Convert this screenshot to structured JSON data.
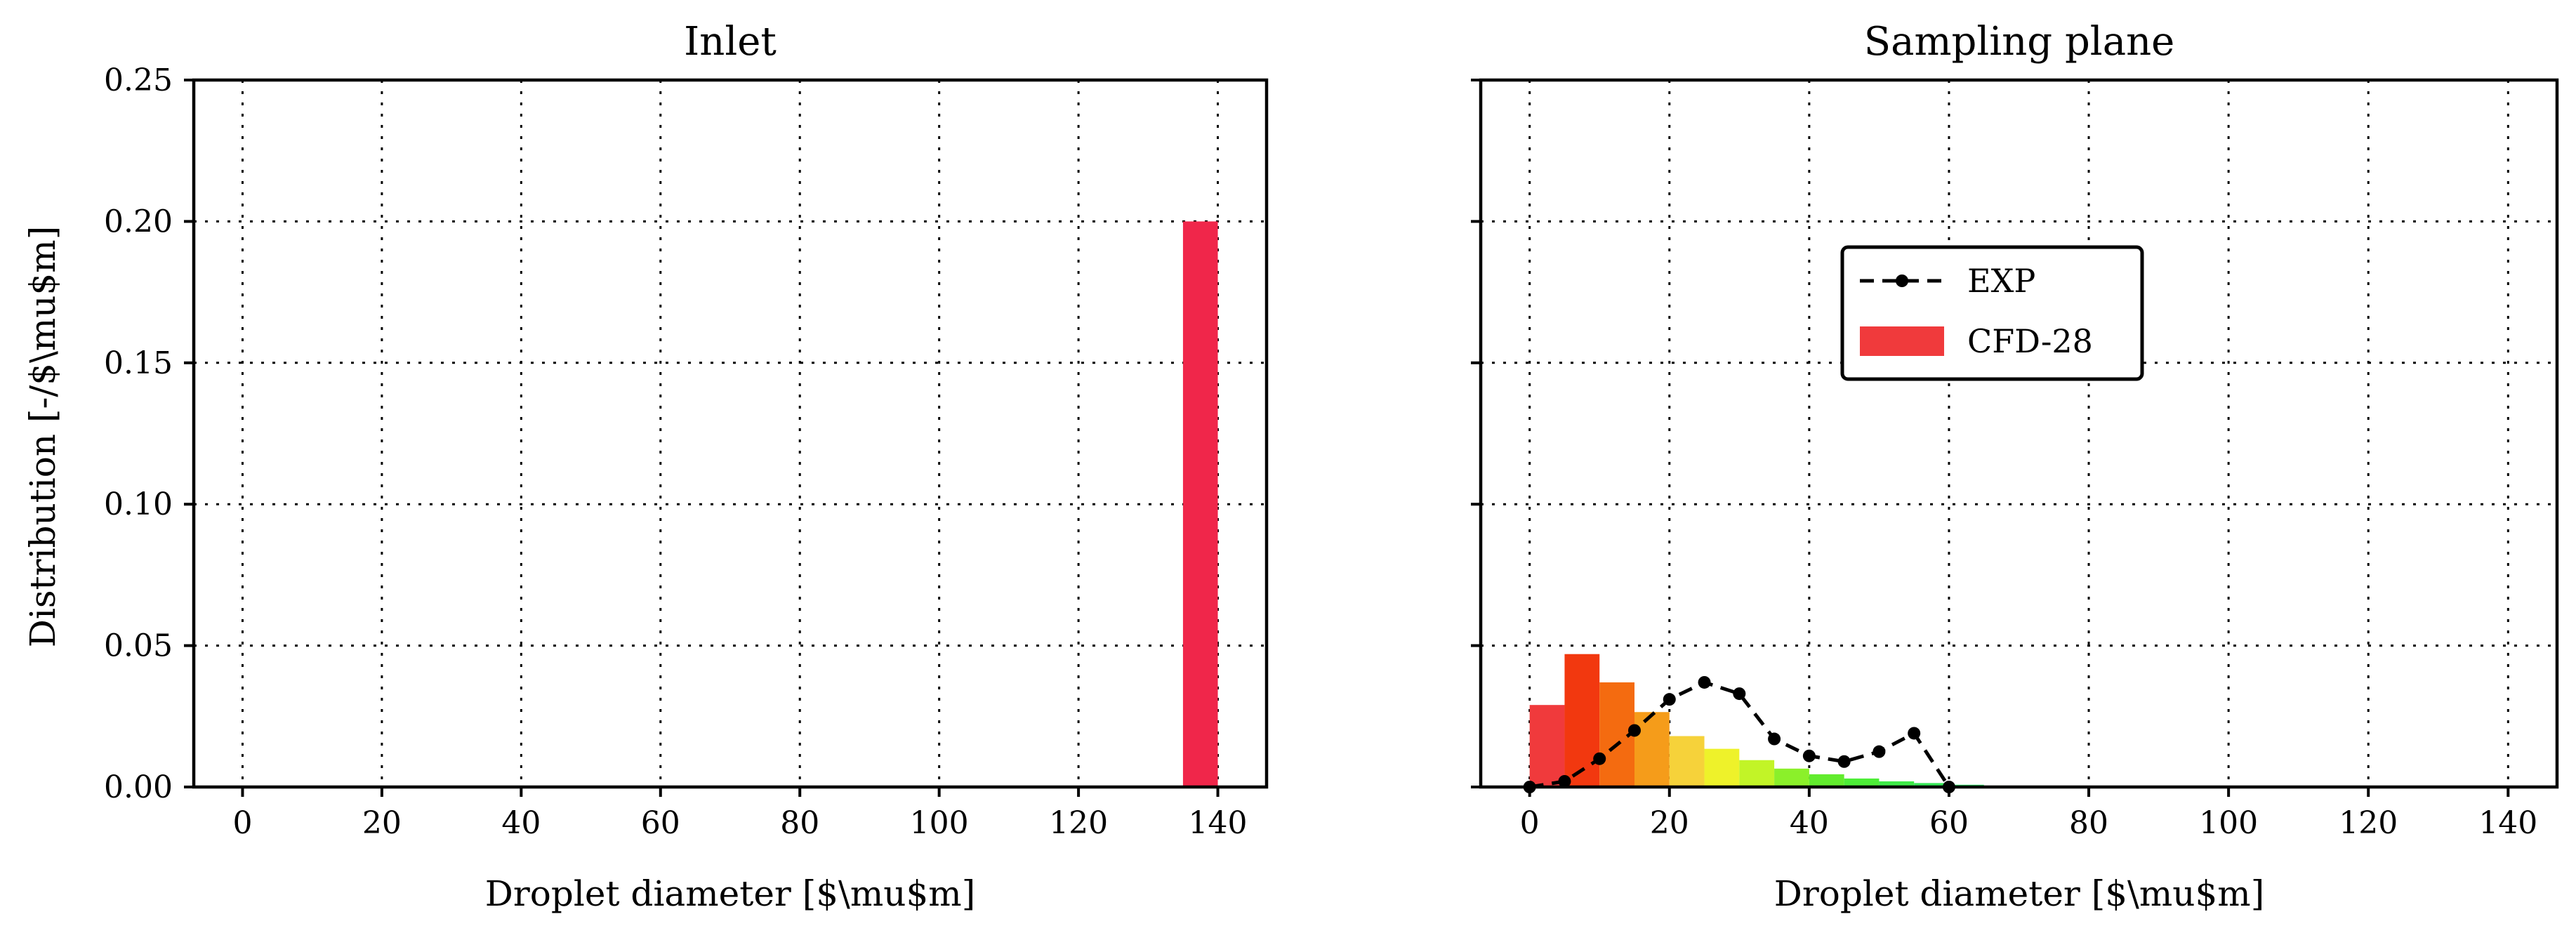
{
  "chart_data": [
    {
      "type": "bar",
      "title": "Inlet",
      "xlabel": "Droplet diameter [$\\mu$m]",
      "ylabel": "Distribution [-/$\\mu$m]",
      "xlim": [
        -7,
        147
      ],
      "ylim": [
        0,
        0.25
      ],
      "xticks": [
        "0",
        "20",
        "40",
        "60",
        "80",
        "100",
        "120",
        "140"
      ],
      "yticks": [
        "0.00",
        "0.05",
        "0.10",
        "0.15",
        "0.20",
        "0.25"
      ],
      "grid": true,
      "bin_width": 5,
      "bars": [
        {
          "x_left": 135,
          "value": 0.2,
          "color": "#f0264a"
        }
      ]
    },
    {
      "type": "bar",
      "title": "Sampling plane",
      "xlabel": "Droplet diameter [$\\mu$m]",
      "ylabel": "",
      "xlim": [
        -7,
        147
      ],
      "ylim": [
        0,
        0.25
      ],
      "xticks": [
        "0",
        "20",
        "40",
        "60",
        "80",
        "100",
        "120",
        "140"
      ],
      "grid": true,
      "legend_position": "upper-center",
      "bin_width": 5,
      "bars": [
        {
          "x_left": 0,
          "value": 0.029,
          "color": "#f03a3c"
        },
        {
          "x_left": 5,
          "value": 0.047,
          "color": "#f2380f"
        },
        {
          "x_left": 10,
          "value": 0.037,
          "color": "#f46b10"
        },
        {
          "x_left": 15,
          "value": 0.0265,
          "color": "#f59c1a"
        },
        {
          "x_left": 20,
          "value": 0.018,
          "color": "#f6d23a"
        },
        {
          "x_left": 25,
          "value": 0.0135,
          "color": "#eef22a"
        },
        {
          "x_left": 30,
          "value": 0.0095,
          "color": "#c2f427"
        },
        {
          "x_left": 35,
          "value": 0.0065,
          "color": "#8bf02a"
        },
        {
          "x_left": 40,
          "value": 0.0045,
          "color": "#62ec2e"
        },
        {
          "x_left": 45,
          "value": 0.003,
          "color": "#4ded37"
        },
        {
          "x_left": 50,
          "value": 0.002,
          "color": "#3ee948"
        },
        {
          "x_left": 55,
          "value": 0.0014,
          "color": "#37e758"
        },
        {
          "x_left": 60,
          "value": 0.0008,
          "color": "#34e36a"
        },
        {
          "x_left": 65,
          "value": 0.0005,
          "color": "#35df7a"
        }
      ],
      "series": [
        {
          "name": "EXP",
          "type": "line",
          "style": "dashed-with-dots",
          "color": "#000000",
          "x": [
            0,
            5,
            10,
            15,
            20,
            25,
            30,
            35,
            40,
            45,
            50,
            55,
            60
          ],
          "y": [
            0.0,
            0.002,
            0.01,
            0.02,
            0.031,
            0.037,
            0.033,
            0.017,
            0.011,
            0.009,
            0.0125,
            0.019,
            0.0
          ]
        }
      ],
      "legend": [
        {
          "label": "EXP",
          "marker": "dashed-line-dot",
          "color": "#000000"
        },
        {
          "label": "CFD-28",
          "marker": "patch",
          "color": "#f03a3c"
        }
      ]
    }
  ]
}
